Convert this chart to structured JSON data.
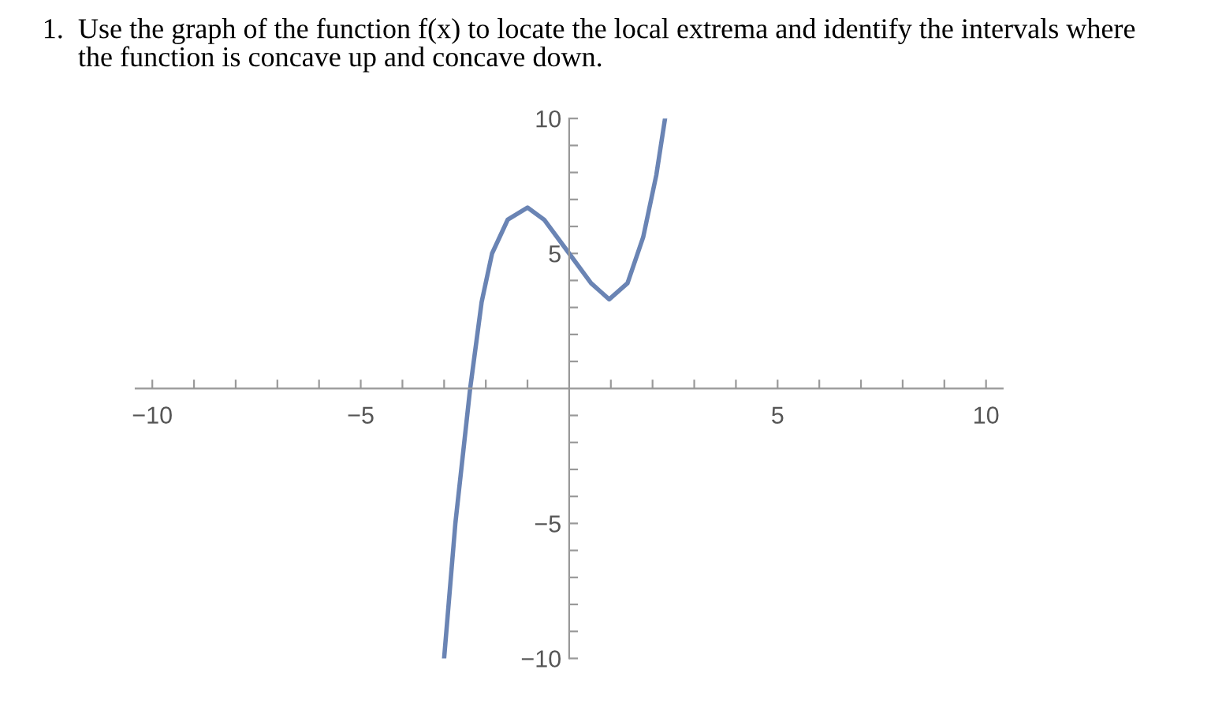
{
  "chart_data": {
    "type": "line",
    "title": "1.  Use the graph of the function f(x) to locate the local extrema and identify the intervals where\n     the function is concave up and concave down.",
    "x": [
      -3.0,
      -2.73,
      -2.375,
      -2.1,
      -1.85,
      -1.475,
      -1.0,
      -0.6,
      0,
      0.525,
      0.96,
      1.4,
      1.775,
      2.09,
      2.3
    ],
    "series": [
      {
        "color": "#6a84b4",
        "values": [
          -10,
          -5.0,
          0,
          3.2,
          5.0,
          6.25,
          6.7,
          6.25,
          5.0,
          3.9,
          3.3,
          3.9,
          5.6,
          7.9,
          10
        ]
      }
    ],
    "xlim": [
      -10.4,
      10.4
    ],
    "ylim": [
      -10,
      10
    ],
    "xticks": [
      -10,
      {
        "value": -9,
        "label": null
      },
      {
        "value": -8,
        "label": null
      },
      {
        "value": -7,
        "label": null
      },
      {
        "value": -6,
        "label": null
      },
      -5,
      {
        "value": -4,
        "label": null
      },
      {
        "value": -3,
        "label": null
      },
      {
        "value": -2,
        "label": null
      },
      {
        "value": -1,
        "label": null
      },
      {
        "value": 1,
        "label": null
      },
      {
        "value": 2,
        "label": null
      },
      {
        "value": 3,
        "label": null
      },
      {
        "value": 4,
        "label": null
      },
      5,
      {
        "value": 6,
        "label": null
      },
      {
        "value": 7,
        "label": null
      },
      {
        "value": 8,
        "label": null
      },
      {
        "value": 9,
        "label": null
      },
      10
    ],
    "yticks": [
      -10,
      {
        "value": -9,
        "label": null
      },
      {
        "value": -8,
        "label": null
      },
      {
        "value": -7,
        "label": null
      },
      {
        "value": -6,
        "label": null
      },
      -5,
      {
        "value": -4,
        "label": null
      },
      {
        "value": -3,
        "label": null
      },
      {
        "value": -2,
        "label": null
      },
      {
        "value": -1,
        "label": null
      },
      {
        "value": 1,
        "label": null
      },
      {
        "value": 2,
        "label": null
      },
      {
        "value": 3,
        "label": null
      },
      {
        "value": 4,
        "label": null
      },
      5,
      {
        "value": 6,
        "label": null
      },
      {
        "value": 7,
        "label": null
      },
      {
        "value": 8,
        "label": null
      },
      {
        "value": 9,
        "label": null
      },
      10
    ],
    "grid": false,
    "legend": false,
    "marker": "none",
    "line_style": "solid"
  }
}
